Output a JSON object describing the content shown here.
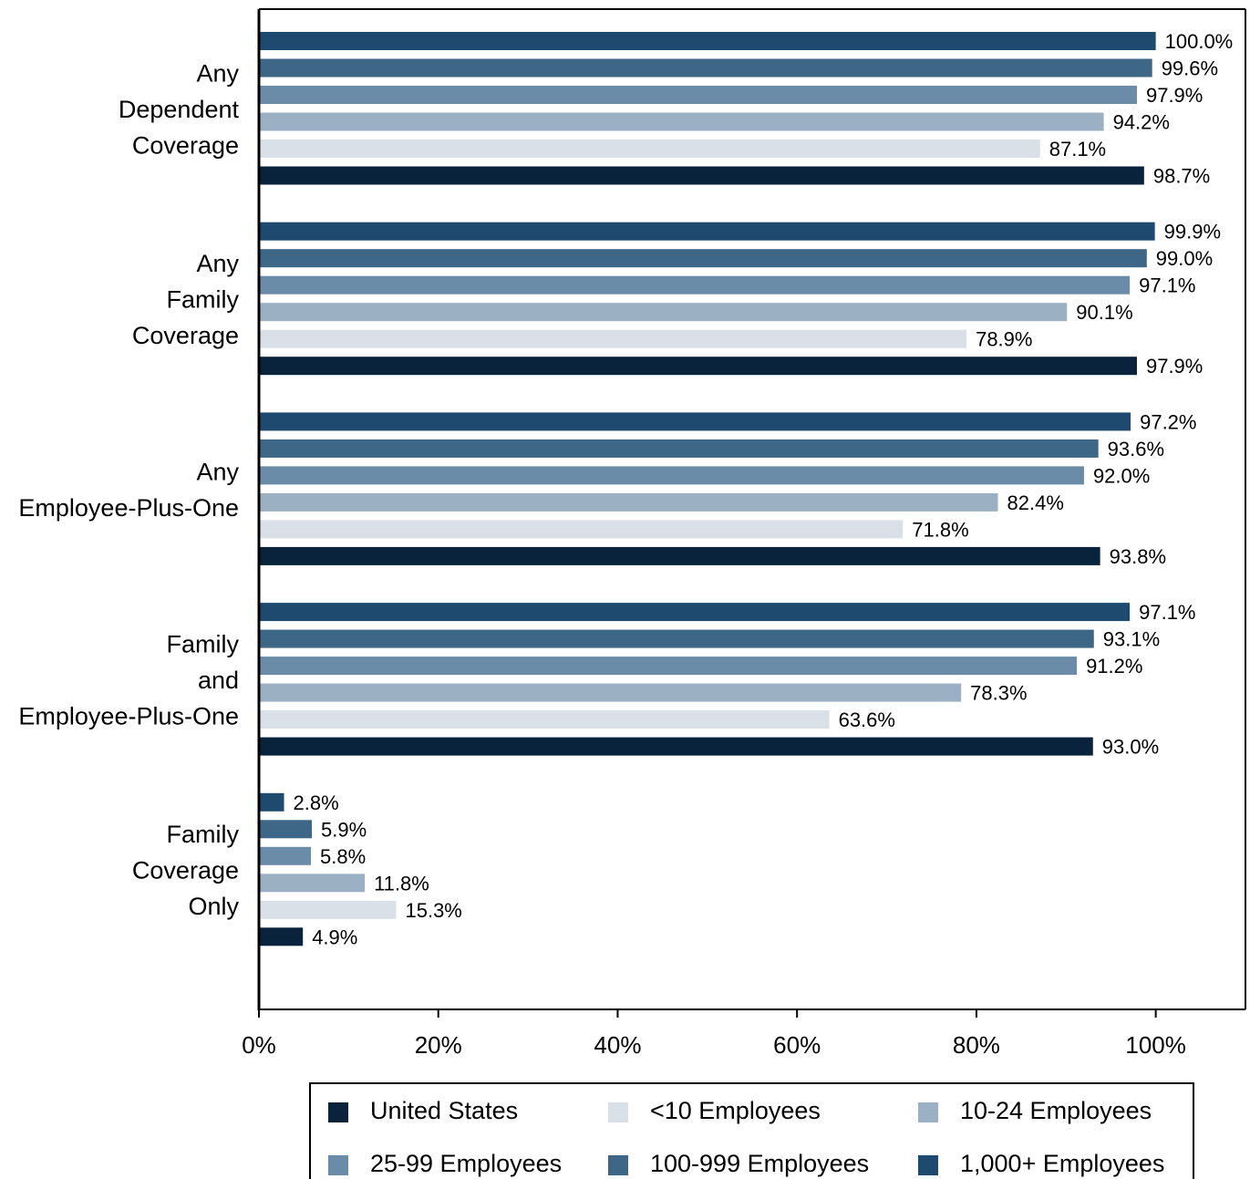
{
  "chart_data": {
    "type": "bar",
    "orientation": "horizontal",
    "title": "",
    "xlabel": "",
    "ylabel": "",
    "xlim": [
      0,
      110
    ],
    "x_ticks": [
      0,
      20,
      40,
      60,
      80,
      100
    ],
    "x_tick_labels": [
      "0%",
      "20%",
      "40%",
      "60%",
      "80%",
      "100%"
    ],
    "grid": false,
    "legend_position": "bottom",
    "categories": [
      [
        "Any",
        "Dependent",
        "Coverage"
      ],
      [
        "Any",
        "Family",
        "Coverage"
      ],
      [
        "Any",
        "Employee-Plus-One"
      ],
      [
        "Family",
        "and",
        "Employee-Plus-One"
      ],
      [
        "Family",
        "Coverage",
        "Only"
      ]
    ],
    "series": [
      {
        "name": "1,000+ Employees",
        "color": "#1f4a70",
        "values": [
          100.0,
          99.9,
          97.2,
          97.1,
          2.8
        ],
        "labels": [
          "100.0%",
          "99.9%",
          "97.2%",
          "97.1%",
          "2.8%"
        ]
      },
      {
        "name": "100-999 Employees",
        "color": "#3e6687",
        "values": [
          99.6,
          99.0,
          93.6,
          93.1,
          5.9
        ],
        "labels": [
          "99.6%",
          "99.0%",
          "93.6%",
          "93.1%",
          "5.9%"
        ]
      },
      {
        "name": "25-99 Employees",
        "color": "#6b8ca8",
        "values": [
          97.9,
          97.1,
          92.0,
          91.2,
          5.8
        ],
        "labels": [
          "97.9%",
          "97.1%",
          "92.0%",
          "91.2%",
          "5.8%"
        ]
      },
      {
        "name": "10-24 Employees",
        "color": "#9cb0c4",
        "values": [
          94.2,
          90.1,
          82.4,
          78.3,
          11.8
        ],
        "labels": [
          "94.2%",
          "90.1%",
          "82.4%",
          "78.3%",
          "11.8%"
        ]
      },
      {
        "name": "<10 Employees",
        "color": "#d9e0e7",
        "values": [
          87.1,
          78.9,
          71.8,
          63.6,
          15.3
        ],
        "labels": [
          "87.1%",
          "78.9%",
          "71.8%",
          "63.6%",
          "15.3%"
        ]
      },
      {
        "name": "United States",
        "color": "#0a233d",
        "values": [
          98.7,
          97.9,
          93.8,
          93.0,
          4.9
        ],
        "labels": [
          "98.7%",
          "97.9%",
          "93.8%",
          "93.0%",
          "4.9%"
        ]
      }
    ],
    "legend_entries": [
      "United States",
      "<10 Employees",
      "10-24 Employees",
      "25-99 Employees",
      "100-999 Employees",
      "1,000+ Employees"
    ]
  }
}
